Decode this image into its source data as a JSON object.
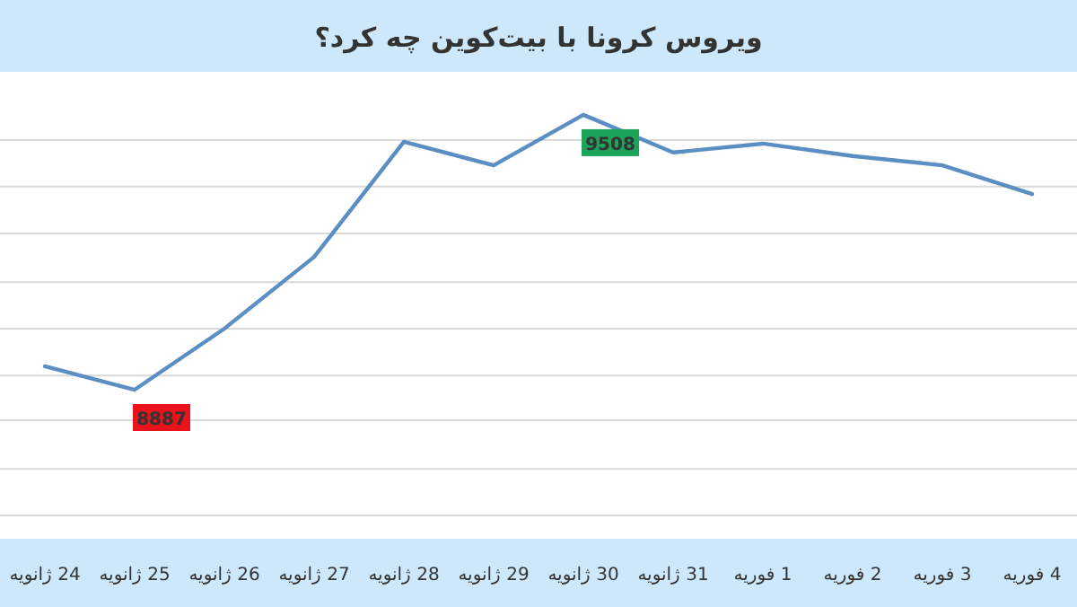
{
  "chart_data": {
    "type": "line",
    "title": "ویروس کرونا با بیت‌کوین چه کرد؟",
    "categories": [
      "24 ژانویه",
      "25 ژانویه",
      "26 ژانویه",
      "27 ژانویه",
      "28 ژانویه",
      "29 ژانویه",
      "30 ژانویه",
      "31 ژانویه",
      "1 فوریه",
      "2 فوریه",
      "3 فوریه",
      "4 فوریه"
    ],
    "series": [
      {
        "color": "#5b8fc4",
        "values": [
          8940,
          8887,
          9025,
          9187,
          9447,
          9394,
          9508,
          9423,
          9443,
          9415,
          9394,
          9329
        ],
        "value_labels": [
          null,
          "8887",
          null,
          null,
          null,
          null,
          "9508",
          null,
          null,
          null,
          null,
          null
        ]
      }
    ],
    "yticks": [
      {
        "value": 8603,
        "label": null
      },
      {
        "value": 8708,
        "label": null
      },
      {
        "value": 8818,
        "label": null
      },
      {
        "value": 8919,
        "label": null
      },
      {
        "value": 9025,
        "label": null
      },
      {
        "value": 9130,
        "label": null
      },
      {
        "value": 9240,
        "label": null
      },
      {
        "value": 9346,
        "label": null
      },
      {
        "value": 9451,
        "label": null
      }
    ],
    "grid": "y",
    "tick_labels": "x",
    "marker": "none",
    "line_style": "solid"
  }
}
